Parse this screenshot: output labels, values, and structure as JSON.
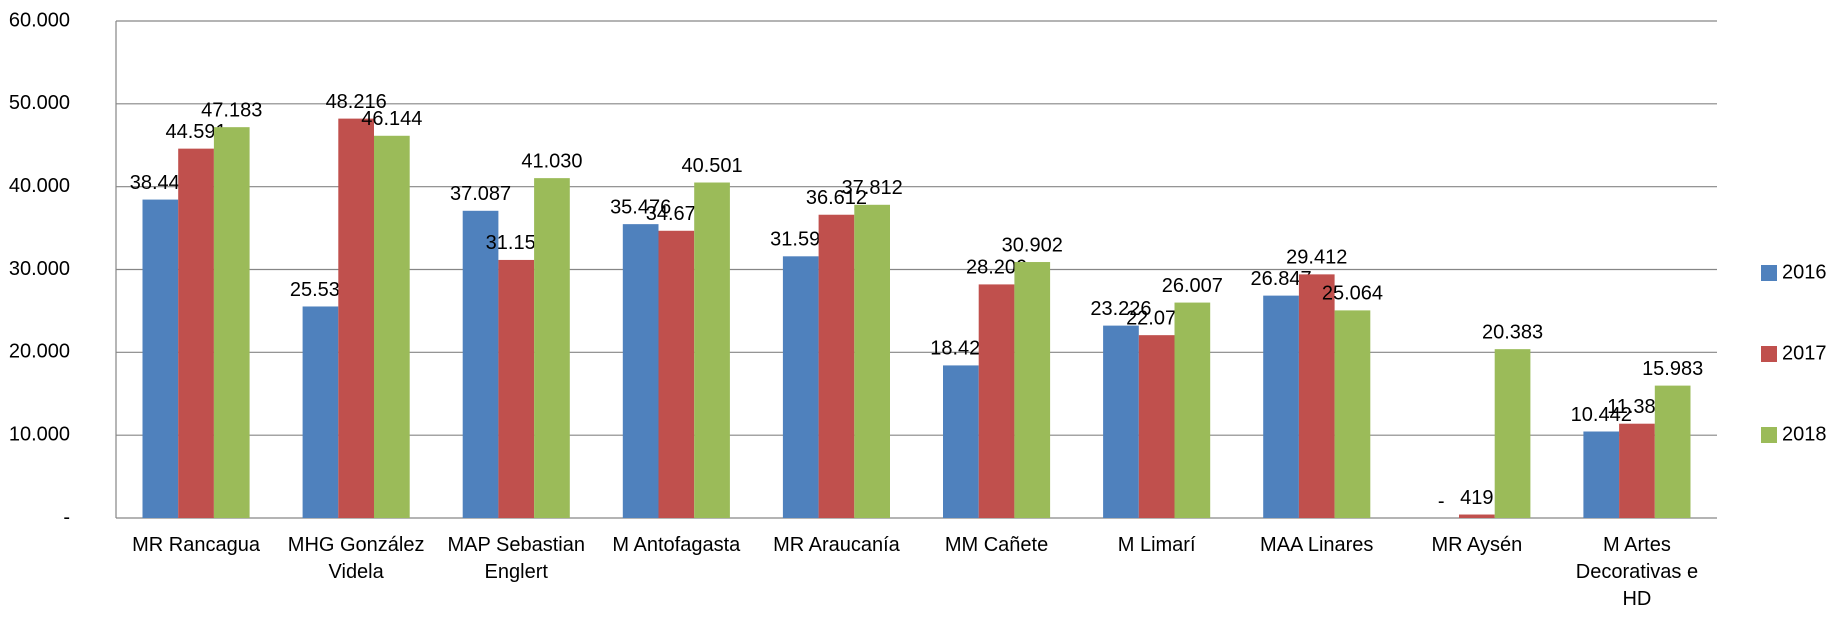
{
  "chart_data": {
    "type": "bar",
    "categories": [
      "MR Rancagua",
      "MHG González Videla",
      "MAP Sebastian Englert",
      "M Antofagasta",
      "MR Araucanía",
      "MM Cañete",
      "M Limarí",
      "MAA Linares",
      "MR Aysén",
      "M Artes Decorativas e HD"
    ],
    "series": [
      {
        "name": "2016",
        "color": "#4f81bd",
        "values": [
          38441,
          25536,
          37087,
          35476,
          31592,
          18421,
          23226,
          26847,
          0,
          10442
        ],
        "value_labels": [
          "38.441",
          "25.536",
          "37.087",
          "35.476",
          "31.592",
          "18.421",
          "23.226",
          "26.847",
          "-",
          "10.442"
        ]
      },
      {
        "name": "2017",
        "color": "#c0504d",
        "values": [
          44591,
          48216,
          31154,
          34675,
          36612,
          28200,
          22073,
          29412,
          419,
          11385
        ],
        "value_labels": [
          "44.591",
          "48.216",
          "31.154",
          "34.675",
          "36.612",
          "28.200",
          "22.073",
          "29.412",
          "419",
          "11.385"
        ]
      },
      {
        "name": "2018",
        "color": "#9bbb59",
        "values": [
          47183,
          46144,
          41030,
          40501,
          37812,
          30902,
          26007,
          25064,
          20383,
          15983
        ],
        "value_labels": [
          "47.183",
          "46.144",
          "41.030",
          "40.501",
          "37.812",
          "30.902",
          "26.007",
          "25.064",
          "20.383",
          "15.983"
        ]
      }
    ],
    "ylim": [
      0,
      60000
    ],
    "yticks": [
      {
        "value": 0,
        "label": "-"
      },
      {
        "value": 10000,
        "label": "10.000"
      },
      {
        "value": 20000,
        "label": "20.000"
      },
      {
        "value": 30000,
        "label": "30.000"
      },
      {
        "value": 40000,
        "label": "40.000"
      },
      {
        "value": 50000,
        "label": "50.000"
      },
      {
        "value": 60000,
        "label": "60.000"
      }
    ],
    "grid": true,
    "legend": "right"
  }
}
